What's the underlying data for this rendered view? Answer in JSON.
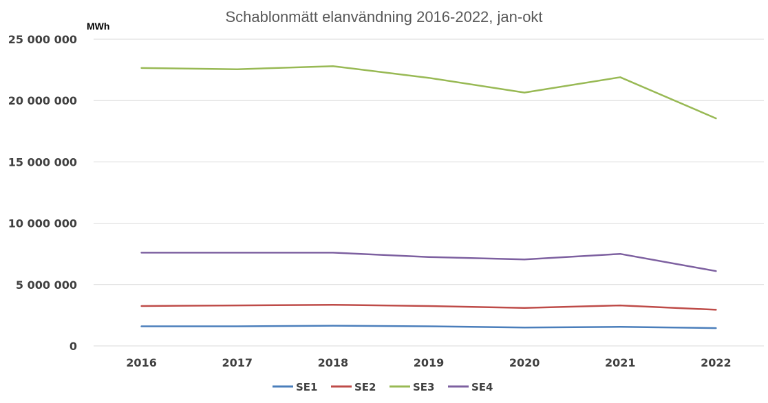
{
  "chart_data": {
    "type": "line",
    "title": "Schablonmätt elanvändning 2016-2022, jan-okt",
    "unit_label": "MWh",
    "xlabel": "",
    "ylabel": "",
    "categories": [
      "2016",
      "2017",
      "2018",
      "2019",
      "2020",
      "2021",
      "2022"
    ],
    "ylim": [
      0,
      25000000
    ],
    "yticks": [
      {
        "value": 0,
        "label": "0"
      },
      {
        "value": 5000000,
        "label": "5 000 000"
      },
      {
        "value": 10000000,
        "label": "10 000 000"
      },
      {
        "value": 15000000,
        "label": "15 000 000"
      },
      {
        "value": 20000000,
        "label": "20 000 000"
      },
      {
        "value": 25000000,
        "label": "25 000 000"
      }
    ],
    "grid": true,
    "legend_position": "bottom",
    "series": [
      {
        "name": "SE1",
        "color": "#4a7ebb",
        "values": [
          1600000,
          1600000,
          1650000,
          1600000,
          1500000,
          1550000,
          1450000
        ]
      },
      {
        "name": "SE2",
        "color": "#be4b48",
        "values": [
          3250000,
          3300000,
          3350000,
          3250000,
          3100000,
          3300000,
          2950000
        ]
      },
      {
        "name": "SE3",
        "color": "#98b954",
        "values": [
          22650000,
          22550000,
          22800000,
          21850000,
          20650000,
          21900000,
          18550000
        ]
      },
      {
        "name": "SE4",
        "color": "#7d60a0",
        "values": [
          7600000,
          7600000,
          7600000,
          7250000,
          7050000,
          7500000,
          6100000
        ]
      }
    ]
  }
}
